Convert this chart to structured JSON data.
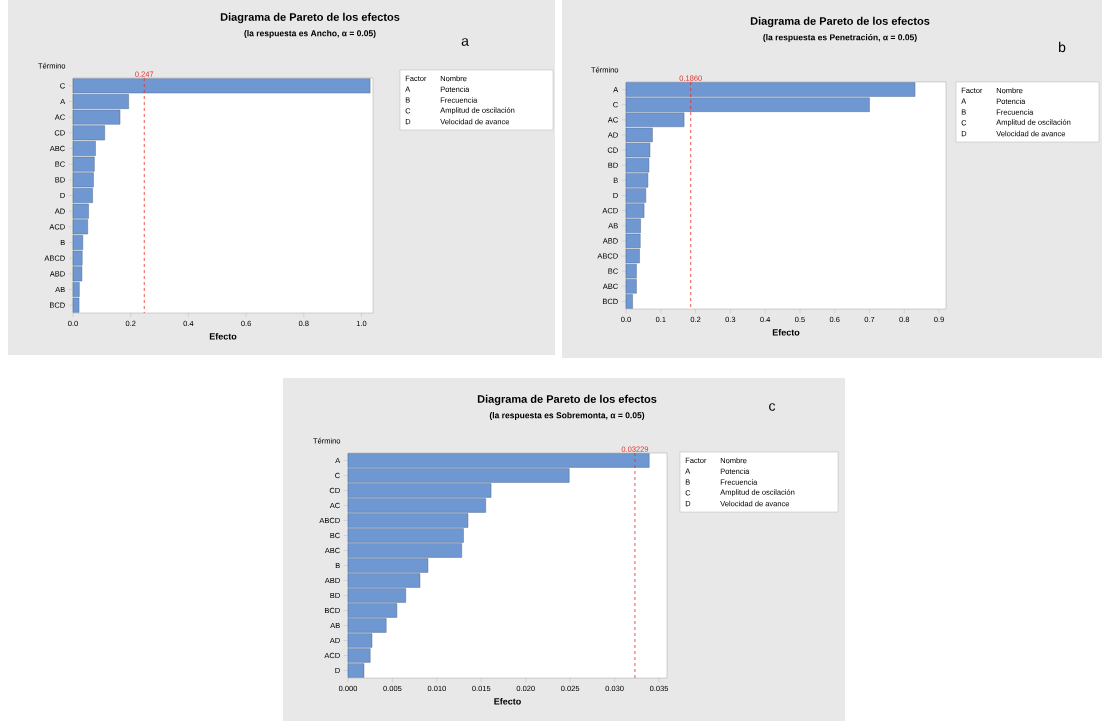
{
  "chart_data": [
    {
      "type": "bar",
      "orientation": "horizontal",
      "title": "Diagrama de Pareto de los efectos",
      "subtitle": "(la respuesta es Ancho, α = 0.05)",
      "xlabel": "Efecto",
      "ylabel": "Término",
      "categories": [
        "C",
        "A",
        "AC",
        "CD",
        "ABC",
        "BC",
        "BD",
        "D",
        "AD",
        "ACD",
        "B",
        "ABCD",
        "ABD",
        "AB",
        "BCD"
      ],
      "values": [
        1.03,
        0.193,
        0.163,
        0.11,
        0.078,
        0.074,
        0.071,
        0.068,
        0.054,
        0.051,
        0.034,
        0.032,
        0.031,
        0.022,
        0.021
      ],
      "color": "#6f98d2",
      "xlim": [
        0,
        1.04
      ],
      "xticks": [
        {
          "value": 0,
          "label": "0.0"
        },
        {
          "value": 0.2,
          "label": "0.2"
        },
        {
          "value": 0.4,
          "label": "0.4"
        },
        {
          "value": 0.6,
          "label": "0.6"
        },
        {
          "value": 0.8,
          "label": "0.8"
        },
        {
          "value": 1.0,
          "label": "1.0"
        }
      ],
      "ref_lines": [
        {
          "axis": "x",
          "value": 0.247,
          "label": "0.247",
          "color": "#e0302a",
          "line_style": "dashed"
        }
      ],
      "annotations": [
        "a",
        "Factor",
        "Nombre",
        "A",
        "Potencia",
        "B",
        "Frecuencia",
        "C",
        "Amplitud de oscilación",
        "D",
        "Velocidad de avance"
      ]
    },
    {
      "type": "bar",
      "orientation": "horizontal",
      "title": "Diagrama de Pareto de los efectos",
      "subtitle": "(la respuesta es Penetración, α = 0.05)",
      "xlabel": "Efecto",
      "ylabel": "Término",
      "categories": [
        "A",
        "C",
        "AC",
        "AD",
        "CD",
        "BD",
        "B",
        "D",
        "ACD",
        "AB",
        "ABD",
        "ABCD",
        "BC",
        "ABC",
        "BCD"
      ],
      "values": [
        0.831,
        0.7,
        0.167,
        0.076,
        0.069,
        0.066,
        0.063,
        0.057,
        0.052,
        0.042,
        0.041,
        0.039,
        0.03,
        0.03,
        0.019
      ],
      "color": "#6f98d2",
      "xlim": [
        0,
        0.92
      ],
      "xticks": [
        {
          "value": 0,
          "label": "0.0"
        },
        {
          "value": 0.1,
          "label": "0.1"
        },
        {
          "value": 0.2,
          "label": "0.2"
        },
        {
          "value": 0.3,
          "label": "0.3"
        },
        {
          "value": 0.4,
          "label": "0.4"
        },
        {
          "value": 0.5,
          "label": "0.5"
        },
        {
          "value": 0.6,
          "label": "0.6"
        },
        {
          "value": 0.7,
          "label": "0.7"
        },
        {
          "value": 0.8,
          "label": "0.8"
        },
        {
          "value": 0.9,
          "label": "0.9"
        }
      ],
      "ref_lines": [
        {
          "axis": "x",
          "value": 0.186,
          "label": "0.1860",
          "color": "#e0302a",
          "line_style": "dashed"
        }
      ],
      "annotations": [
        "b",
        "Factor",
        "Nombre",
        "A",
        "Potencia",
        "B",
        "Frecuencia",
        "C",
        "Amplitud de oscilación",
        "D",
        "Velocidad de avance"
      ]
    },
    {
      "type": "bar",
      "orientation": "horizontal",
      "title": "Diagrama de Pareto de los efectos",
      "subtitle": "(la respuesta es Sobremonta, α = 0.05)",
      "xlabel": "Efecto",
      "ylabel": "Término",
      "categories": [
        "A",
        "C",
        "CD",
        "AC",
        "ABCD",
        "BC",
        "ABC",
        "B",
        "ABD",
        "BD",
        "BCD",
        "AB",
        "AD",
        "ACD",
        "D"
      ],
      "values": [
        0.0339,
        0.0249,
        0.0161,
        0.0155,
        0.0135,
        0.013,
        0.0128,
        0.009,
        0.0081,
        0.0065,
        0.0055,
        0.0043,
        0.0027,
        0.0025,
        0.0018
      ],
      "color": "#6f98d2",
      "xlim": [
        0,
        0.0359
      ],
      "xticks": [
        {
          "value": 0,
          "label": "0.000"
        },
        {
          "value": 0.005,
          "label": "0.005"
        },
        {
          "value": 0.01,
          "label": "0.010"
        },
        {
          "value": 0.015,
          "label": "0.015"
        },
        {
          "value": 0.02,
          "label": "0.020"
        },
        {
          "value": 0.025,
          "label": "0.025"
        },
        {
          "value": 0.03,
          "label": "0.030"
        },
        {
          "value": 0.035,
          "label": "0.035"
        }
      ],
      "ref_lines": [
        {
          "axis": "x",
          "value": 0.03229,
          "label": "0.03229",
          "color": "#e0302a",
          "line_style": "dashed"
        }
      ],
      "annotations": [
        "c",
        "Factor",
        "Nombre",
        "A",
        "Potencia",
        "B",
        "Frecuencia",
        "C",
        "Amplitud de oscilación",
        "D",
        "Velocidad de avance"
      ]
    }
  ]
}
